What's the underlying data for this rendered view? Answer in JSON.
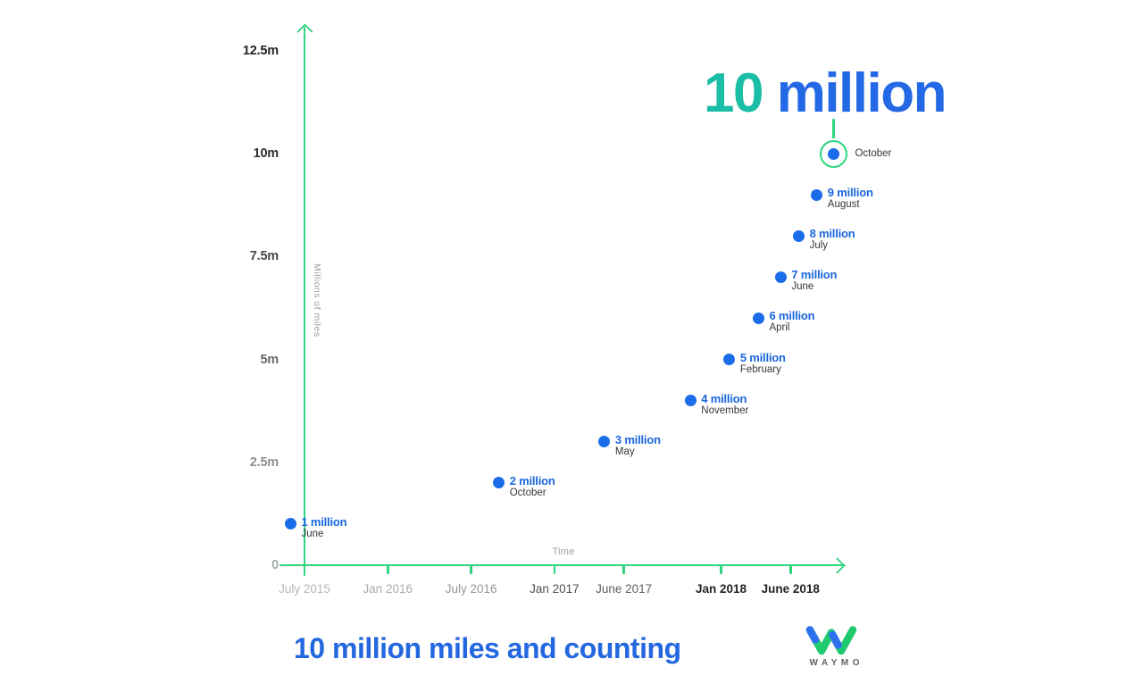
{
  "caption": {
    "text": "10 million miles and counting"
  },
  "logo": {
    "wordmark": "WAYMO"
  },
  "colors": {
    "axis_green": "#2ed57e",
    "dot_blue": "#1b6ce9",
    "label_blue": "#1a66df",
    "title_teal": "#1abda5",
    "title_blue": "#2368e4",
    "caption_blue": "#2468e0",
    "month_text": "#34363a",
    "muted_text": "#9aa0a6",
    "logo_green": "#1fc96e",
    "logo_blue": "#2e71ee",
    "wordmark_gray": "#5f6469"
  },
  "chart_data": {
    "type": "scatter",
    "title": "10 million",
    "title_teal_part": "10",
    "title_blue_part": " million",
    "xlabel": "Time",
    "ylabel": "Millions of miles",
    "x_axis_unit": "months since July 2015",
    "xlim_months": [
      -1.8,
      39.5
    ],
    "ylim": [
      0,
      13.1
    ],
    "grid": false,
    "legend": false,
    "x_ticks": [
      {
        "label": "July 2015",
        "months": 0,
        "color": "#b3b7bb",
        "bold": false
      },
      {
        "label": "Jan 2016",
        "months": 6,
        "color": "#a6aaae",
        "bold": false
      },
      {
        "label": "July 2016",
        "months": 12,
        "color": "#94989c",
        "bold": false
      },
      {
        "label": "Jan 2017",
        "months": 18,
        "color": "#4d4f52",
        "bold": false
      },
      {
        "label": "June 2017",
        "months": 23,
        "color": "#5c5e61",
        "bold": false
      },
      {
        "label": "Jan 2018",
        "months": 30,
        "color": "#222427",
        "bold": true
      },
      {
        "label": "June 2018",
        "months": 35,
        "color": "#222427",
        "bold": true
      }
    ],
    "y_ticks": [
      {
        "label": "0",
        "value": 0,
        "color": "#a3a7ab"
      },
      {
        "label": "2.5m",
        "value": 2.5,
        "color": "#8b8f93"
      },
      {
        "label": "5m",
        "value": 5,
        "color": "#64676b"
      },
      {
        "label": "7.5m",
        "value": 7.5,
        "color": "#45474a"
      },
      {
        "label": "10m",
        "value": 10,
        "color": "#2c2e31"
      },
      {
        "label": "12.5m",
        "value": 12.5,
        "color": "#212326"
      }
    ],
    "points": [
      {
        "value": 1,
        "months": -1.0,
        "label": "1 million",
        "month_label": "June",
        "highlighted": false
      },
      {
        "value": 2,
        "months": 14.0,
        "label": "2 million",
        "month_label": "October",
        "highlighted": false
      },
      {
        "value": 3,
        "months": 21.6,
        "label": "3 million",
        "month_label": "May",
        "highlighted": false
      },
      {
        "value": 4,
        "months": 27.8,
        "label": "4 million",
        "month_label": "November",
        "highlighted": false
      },
      {
        "value": 5,
        "months": 30.6,
        "label": "5 million",
        "month_label": "February",
        "highlighted": false
      },
      {
        "value": 6,
        "months": 32.7,
        "label": "6 million",
        "month_label": "April",
        "highlighted": false
      },
      {
        "value": 7,
        "months": 34.3,
        "label": "7 million",
        "month_label": "June",
        "highlighted": false
      },
      {
        "value": 8,
        "months": 35.6,
        "label": "8 million",
        "month_label": "July",
        "highlighted": false
      },
      {
        "value": 9,
        "months": 36.9,
        "label": "9 million",
        "month_label": "August",
        "highlighted": false
      },
      {
        "value": 10,
        "months": 38.1,
        "label": "10 million",
        "month_label": "October",
        "highlighted": true
      }
    ]
  }
}
